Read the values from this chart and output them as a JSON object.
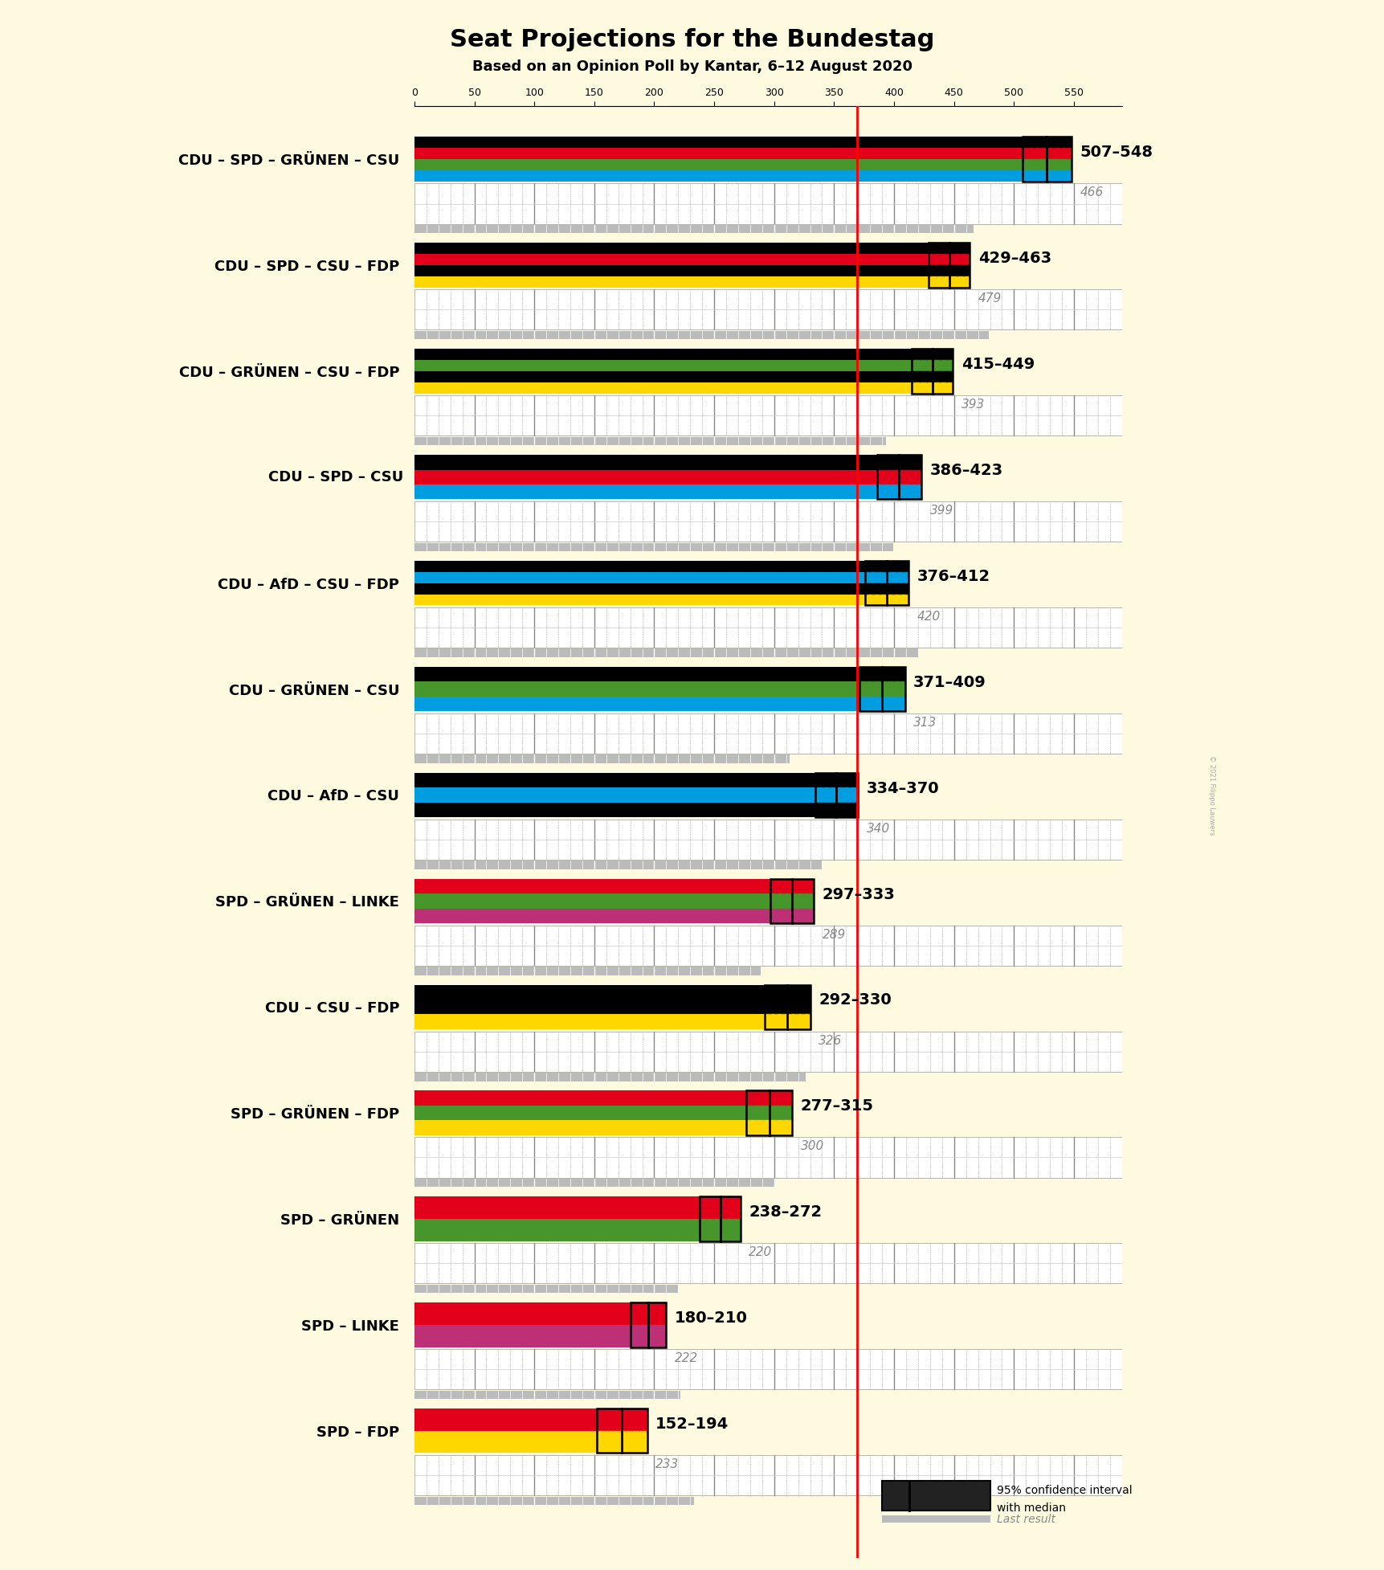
{
  "title": "Seat Projections for the Bundestag",
  "subtitle": "Based on an Opinion Poll by Kantar, 6–12 August 2020",
  "background_color": "#FEFAE0",
  "majority_line": 369,
  "coalitions": [
    {
      "label": "CDU – SPD – GRÜNEN – CSU",
      "underline": false,
      "ci_low": 507,
      "ci_high": 548,
      "median": 527,
      "last_result": 466,
      "parties": [
        "CDU",
        "SPD",
        "GRÜNEN",
        "CSU"
      ],
      "colors": [
        "#000000",
        "#E2001A",
        "#46962B",
        "#009EE0"
      ]
    },
    {
      "label": "CDU – SPD – CSU – FDP",
      "underline": false,
      "ci_low": 429,
      "ci_high": 463,
      "median": 446,
      "last_result": 479,
      "parties": [
        "CDU",
        "SPD",
        "CSU",
        "FDP"
      ],
      "colors": [
        "#000000",
        "#E2001A",
        "#000000",
        "#FFD700"
      ]
    },
    {
      "label": "CDU – GRÜNEN – CSU – FDP",
      "underline": false,
      "ci_low": 415,
      "ci_high": 449,
      "median": 432,
      "last_result": 393,
      "parties": [
        "CDU",
        "GRÜNEN",
        "CSU",
        "FDP"
      ],
      "colors": [
        "#000000",
        "#46962B",
        "#000000",
        "#FFD700"
      ]
    },
    {
      "label": "CDU – SPD – CSU",
      "underline": true,
      "ci_low": 386,
      "ci_high": 423,
      "median": 404,
      "last_result": 399,
      "parties": [
        "CDU",
        "SPD",
        "CSU"
      ],
      "colors": [
        "#000000",
        "#E2001A",
        "#009EE0"
      ]
    },
    {
      "label": "CDU – AfD – CSU – FDP",
      "underline": false,
      "ci_low": 376,
      "ci_high": 412,
      "median": 394,
      "last_result": 420,
      "parties": [
        "CDU",
        "AfD",
        "CSU",
        "FDP"
      ],
      "colors": [
        "#000000",
        "#009EE0",
        "#000000",
        "#FFD700"
      ]
    },
    {
      "label": "CDU – GRÜNEN – CSU",
      "underline": false,
      "ci_low": 371,
      "ci_high": 409,
      "median": 390,
      "last_result": 313,
      "parties": [
        "CDU",
        "GRÜNEN",
        "CSU"
      ],
      "colors": [
        "#000000",
        "#46962B",
        "#009EE0"
      ]
    },
    {
      "label": "CDU – AfD – CSU",
      "underline": false,
      "ci_low": 334,
      "ci_high": 370,
      "median": 352,
      "last_result": 340,
      "parties": [
        "CDU",
        "AfD",
        "CSU"
      ],
      "colors": [
        "#000000",
        "#009EE0",
        "#000000"
      ]
    },
    {
      "label": "SPD – GRÜNEN – LINKE",
      "underline": false,
      "ci_low": 297,
      "ci_high": 333,
      "median": 315,
      "last_result": 289,
      "parties": [
        "SPD",
        "GRÜNEN",
        "LINKE"
      ],
      "colors": [
        "#E2001A",
        "#46962B",
        "#BE3075"
      ]
    },
    {
      "label": "CDU – CSU – FDP",
      "underline": false,
      "ci_low": 292,
      "ci_high": 330,
      "median": 311,
      "last_result": 326,
      "parties": [
        "CDU",
        "CSU",
        "FDP"
      ],
      "colors": [
        "#000000",
        "#000000",
        "#FFD700"
      ]
    },
    {
      "label": "SPD – GRÜNEN – FDP",
      "underline": false,
      "ci_low": 277,
      "ci_high": 315,
      "median": 296,
      "last_result": 300,
      "parties": [
        "SPD",
        "GRÜNEN",
        "FDP"
      ],
      "colors": [
        "#E2001A",
        "#46962B",
        "#FFD700"
      ]
    },
    {
      "label": "SPD – GRÜNEN",
      "underline": false,
      "ci_low": 238,
      "ci_high": 272,
      "median": 255,
      "last_result": 220,
      "parties": [
        "SPD",
        "GRÜNEN"
      ],
      "colors": [
        "#E2001A",
        "#46962B"
      ]
    },
    {
      "label": "SPD – LINKE",
      "underline": false,
      "ci_low": 180,
      "ci_high": 210,
      "median": 195,
      "last_result": 222,
      "parties": [
        "SPD",
        "LINKE"
      ],
      "colors": [
        "#E2001A",
        "#BE3075"
      ]
    },
    {
      "label": "SPD – FDP",
      "underline": false,
      "ci_low": 152,
      "ci_high": 194,
      "median": 173,
      "last_result": 233,
      "parties": [
        "SPD",
        "FDP"
      ],
      "colors": [
        "#E2001A",
        "#FFD700"
      ]
    }
  ],
  "xlim": [
    0,
    590
  ],
  "ruler_color": "#CCCCCC",
  "last_bar_color": "#BBBBBB",
  "copyright_text": "© 2021 Filippo Lauwers"
}
